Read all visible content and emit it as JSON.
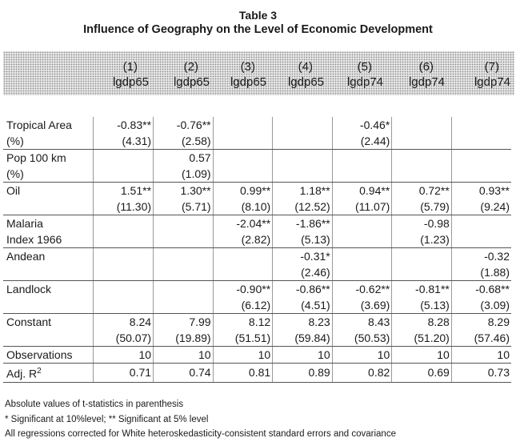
{
  "title": "Table 3",
  "subtitle": "Influence of Geography on the Level of Economic Development",
  "columns": [
    {
      "num": "(1)",
      "var": "lgdp65"
    },
    {
      "num": "(2)",
      "var": "lgdp65"
    },
    {
      "num": "(3)",
      "var": "lgdp65"
    },
    {
      "num": "(4)",
      "var": "lgdp65"
    },
    {
      "num": "(5)",
      "var": "lgdp74"
    },
    {
      "num": "(6)",
      "var": "lgdp74"
    },
    {
      "num": "(7)",
      "var": "lgdp74"
    }
  ],
  "rows": [
    {
      "label": "Tropical Area",
      "cells": [
        "-0.83**",
        "-0.76**",
        "",
        "",
        "-0.46*",
        "",
        ""
      ]
    },
    {
      "label": "(%)",
      "cells": [
        "(4.31)",
        "(2.58)",
        "",
        "",
        "(2.44)",
        "",
        ""
      ],
      "group_end": true
    },
    {
      "label": "Pop 100 km",
      "cells": [
        "",
        "0.57",
        "",
        "",
        "",
        "",
        ""
      ]
    },
    {
      "label": "(%)",
      "cells": [
        "",
        "(1.09)",
        "",
        "",
        "",
        "",
        ""
      ],
      "group_end": true
    },
    {
      "label": "Oil",
      "cells": [
        "1.51**",
        "1.30**",
        "0.99**",
        "1.18**",
        "0.94**",
        "0.72**",
        "0.93**"
      ]
    },
    {
      "label": "",
      "cells": [
        "(11.30)",
        "(5.71)",
        "(8.10)",
        "(12.52)",
        "(11.07)",
        "(5.79)",
        "(9.24)"
      ],
      "group_end": true
    },
    {
      "label": "Malaria",
      "cells": [
        "",
        "",
        "-2.04**",
        "-1.86**",
        "",
        "-0.98",
        ""
      ]
    },
    {
      "label": "Index 1966",
      "cells": [
        "",
        "",
        "(2.82)",
        "(5.13)",
        "",
        "(1.23)",
        ""
      ],
      "group_end": true
    },
    {
      "label": "Andean",
      "cells": [
        "",
        "",
        "",
        "-0.31*",
        "",
        "",
        "-0.32"
      ]
    },
    {
      "label": "",
      "cells": [
        "",
        "",
        "",
        "(2.46)",
        "",
        "",
        "(1.88)"
      ],
      "group_end": true
    },
    {
      "label": "Landlock",
      "cells": [
        "",
        "",
        "-0.90**",
        "-0.86**",
        "-0.62**",
        "-0.81**",
        "-0.68**"
      ]
    },
    {
      "label": "",
      "cells": [
        "",
        "",
        "(6.12)",
        "(4.51)",
        "(3.69)",
        "(5.13)",
        "(3.09)"
      ],
      "group_end": true
    },
    {
      "label": "Constant",
      "cells": [
        "8.24",
        "7.99",
        "8.12",
        "8.23",
        "8.43",
        "8.28",
        "8.29"
      ]
    },
    {
      "label": "",
      "cells": [
        "(50.07)",
        "(19.89)",
        "(51.51)",
        "(59.84)",
        "(50.53)",
        "(51.20)",
        "(57.46)"
      ],
      "group_end": true
    },
    {
      "label": "Observations",
      "cells": [
        "10",
        "10",
        "10",
        "10",
        "10",
        "10",
        "10"
      ],
      "group_end": true
    },
    {
      "label": "Adj. R2",
      "cells": [
        "0.71",
        "0.74",
        "0.81",
        "0.89",
        "0.82",
        "0.69",
        "0.73"
      ],
      "group_end": true
    }
  ],
  "notes": [
    "Absolute values of t-statistics in parenthesis",
    "* Significant at 10%level; ** Significant at 5% level",
    "All regressions corrected for White heteroskedasticity-consistent standard errors and covariance"
  ]
}
